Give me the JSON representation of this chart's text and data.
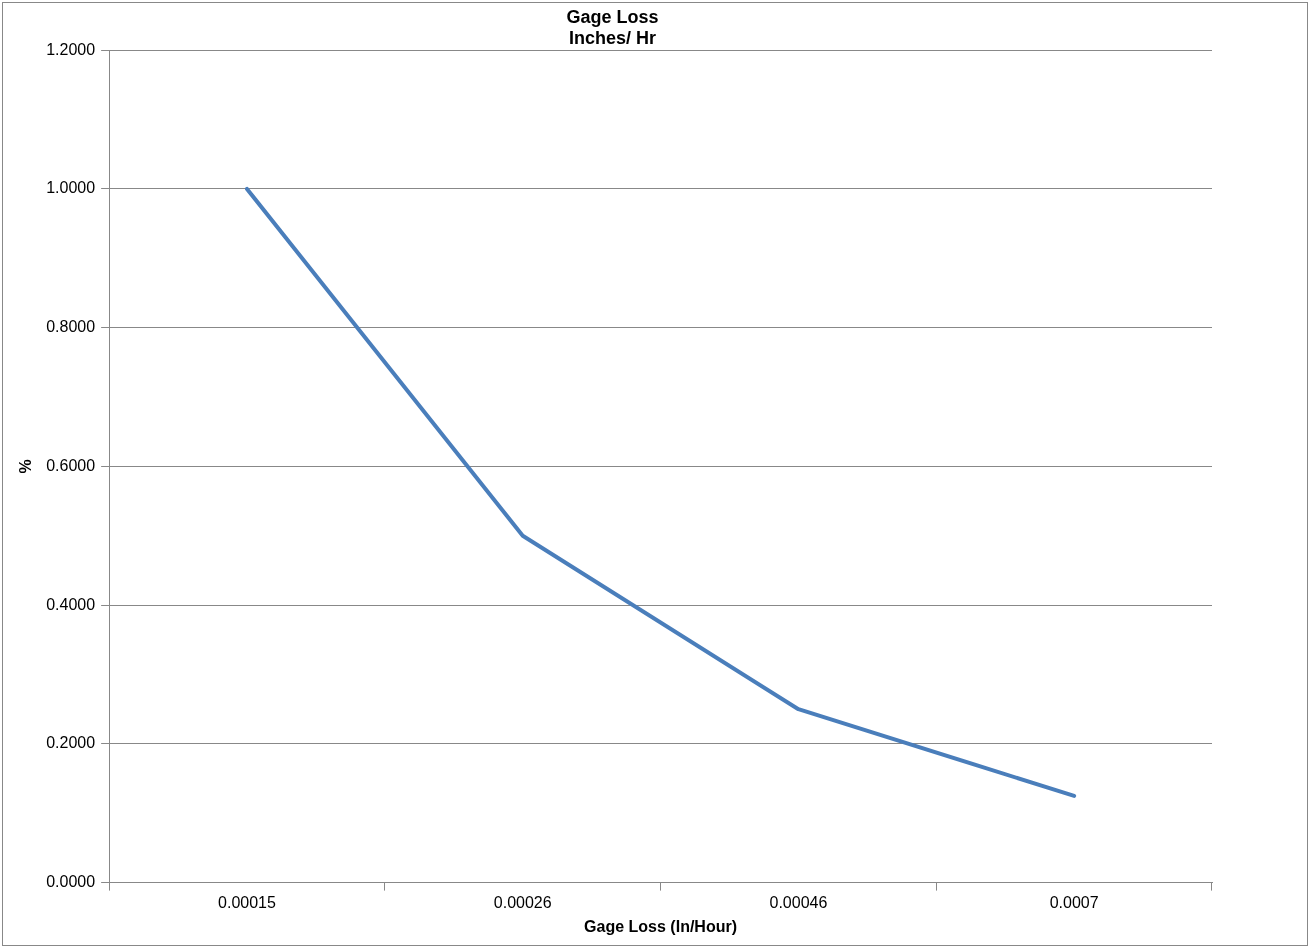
{
  "chart_data": {
    "type": "line",
    "title": "Gage Loss\nInches/ Hr",
    "xlabel": "Gage Loss (In/Hour)",
    "ylabel": "%",
    "categories": [
      "0.00015",
      "0.00026",
      "0.00046",
      "0.0007"
    ],
    "series": [
      {
        "color": "#4a7ebb",
        "values": [
          1.0,
          0.5,
          0.25,
          0.125
        ]
      }
    ],
    "ylim": [
      0,
      1.2
    ],
    "yticks": [
      {
        "value": 0,
        "label": "0.0000"
      },
      {
        "value": 0.2,
        "label": "0.2000"
      },
      {
        "value": 0.4,
        "label": "0.4000"
      },
      {
        "value": 0.6,
        "label": "0.6000"
      },
      {
        "value": 0.8,
        "label": "0.8000"
      },
      {
        "value": 1.0,
        "label": "1.0000"
      },
      {
        "value": 1.2,
        "label": "1.2000"
      }
    ],
    "grid": "y",
    "legend": false,
    "marker": "none",
    "line_style": "solid"
  }
}
